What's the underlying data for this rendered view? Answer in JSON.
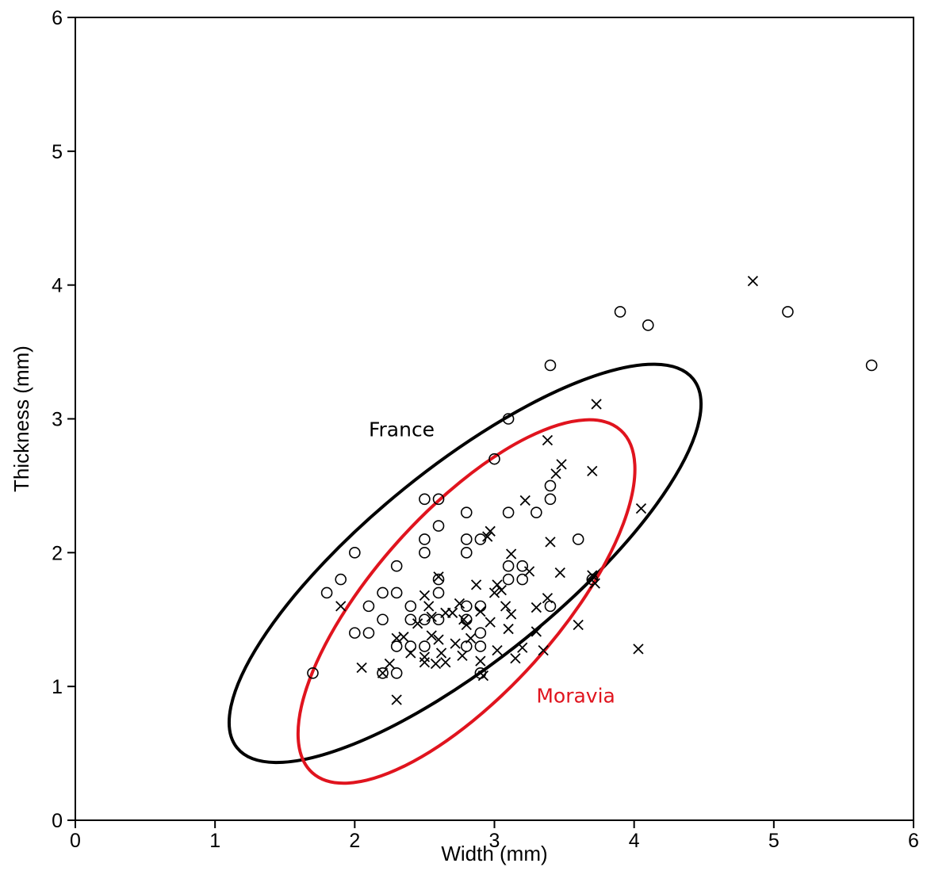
{
  "chart_data": {
    "type": "scatter",
    "xlabel": "Width (mm)",
    "ylabel": "Thickness (mm)",
    "xlim": [
      0,
      6
    ],
    "ylim": [
      0,
      6
    ],
    "x_ticks": [
      "0",
      "1",
      "2",
      "3",
      "4",
      "5",
      "6"
    ],
    "y_ticks": [
      "0",
      "1",
      "2",
      "3",
      "4",
      "5",
      "6"
    ],
    "grid": false,
    "colors": {
      "france": "#000000",
      "moravia": "#e0141e"
    },
    "series": [
      {
        "marker": "circle",
        "points": [
          [
            1.7,
            1.1
          ],
          [
            1.8,
            1.7
          ],
          [
            1.9,
            1.8
          ],
          [
            2.0,
            2.0
          ],
          [
            2.0,
            1.4
          ],
          [
            2.1,
            1.6
          ],
          [
            2.1,
            1.4
          ],
          [
            2.2,
            1.7
          ],
          [
            2.2,
            1.5
          ],
          [
            2.2,
            1.1
          ],
          [
            2.3,
            1.9
          ],
          [
            2.3,
            1.7
          ],
          [
            2.3,
            1.3
          ],
          [
            2.3,
            1.1
          ],
          [
            2.4,
            1.6
          ],
          [
            2.4,
            1.5
          ],
          [
            2.4,
            1.3
          ],
          [
            2.5,
            2.4
          ],
          [
            2.5,
            2.1
          ],
          [
            2.5,
            2.0
          ],
          [
            2.5,
            1.5
          ],
          [
            2.5,
            1.3
          ],
          [
            2.6,
            2.4
          ],
          [
            2.6,
            2.2
          ],
          [
            2.6,
            1.8
          ],
          [
            2.6,
            1.7
          ],
          [
            2.6,
            1.5
          ],
          [
            2.8,
            2.3
          ],
          [
            2.8,
            2.1
          ],
          [
            2.8,
            2.0
          ],
          [
            2.8,
            1.6
          ],
          [
            2.8,
            1.5
          ],
          [
            2.8,
            1.3
          ],
          [
            2.9,
            2.1
          ],
          [
            2.9,
            1.6
          ],
          [
            2.9,
            1.4
          ],
          [
            2.9,
            1.3
          ],
          [
            2.9,
            1.1
          ],
          [
            3.0,
            2.7
          ],
          [
            3.1,
            3.0
          ],
          [
            3.1,
            2.3
          ],
          [
            3.1,
            1.9
          ],
          [
            3.1,
            1.8
          ],
          [
            3.2,
            1.9
          ],
          [
            3.2,
            1.8
          ],
          [
            3.3,
            2.3
          ],
          [
            3.4,
            3.4
          ],
          [
            3.4,
            2.5
          ],
          [
            3.4,
            2.4
          ],
          [
            3.4,
            1.6
          ],
          [
            3.6,
            2.1
          ],
          [
            3.7,
            1.8
          ],
          [
            3.9,
            3.8
          ],
          [
            4.1,
            3.7
          ],
          [
            5.1,
            3.8
          ],
          [
            5.7,
            3.4
          ]
        ]
      },
      {
        "marker": "cross",
        "points": [
          [
            1.9,
            1.6
          ],
          [
            2.05,
            1.14
          ],
          [
            2.2,
            1.1
          ],
          [
            2.25,
            1.17
          ],
          [
            2.3,
            0.9
          ],
          [
            2.3,
            1.36
          ],
          [
            2.35,
            1.37
          ],
          [
            2.4,
            1.25
          ],
          [
            2.45,
            1.47
          ],
          [
            2.5,
            1.68
          ],
          [
            2.5,
            1.22
          ],
          [
            2.5,
            1.18
          ],
          [
            2.53,
            1.6
          ],
          [
            2.55,
            1.52
          ],
          [
            2.55,
            1.38
          ],
          [
            2.58,
            1.17
          ],
          [
            2.6,
            1.82
          ],
          [
            2.6,
            1.35
          ],
          [
            2.62,
            1.25
          ],
          [
            2.65,
            1.55
          ],
          [
            2.65,
            1.18
          ],
          [
            2.7,
            1.55
          ],
          [
            2.72,
            1.32
          ],
          [
            2.75,
            1.62
          ],
          [
            2.77,
            1.23
          ],
          [
            2.78,
            1.5
          ],
          [
            2.8,
            1.46
          ],
          [
            2.83,
            1.36
          ],
          [
            2.87,
            1.76
          ],
          [
            2.9,
            1.56
          ],
          [
            2.9,
            1.19
          ],
          [
            2.92,
            1.08
          ],
          [
            2.95,
            2.12
          ],
          [
            2.97,
            2.16
          ],
          [
            2.97,
            1.48
          ],
          [
            3.0,
            1.7
          ],
          [
            3.02,
            1.76
          ],
          [
            3.02,
            1.27
          ],
          [
            3.05,
            1.72
          ],
          [
            3.08,
            1.6
          ],
          [
            3.1,
            1.43
          ],
          [
            3.12,
            1.99
          ],
          [
            3.12,
            1.54
          ],
          [
            3.15,
            1.21
          ],
          [
            3.2,
            1.29
          ],
          [
            3.22,
            2.39
          ],
          [
            3.25,
            1.86
          ],
          [
            3.3,
            1.59
          ],
          [
            3.3,
            1.41
          ],
          [
            3.35,
            1.27
          ],
          [
            3.38,
            2.84
          ],
          [
            3.38,
            1.66
          ],
          [
            3.4,
            2.08
          ],
          [
            3.44,
            2.59
          ],
          [
            3.47,
            1.85
          ],
          [
            3.48,
            2.66
          ],
          [
            3.6,
            1.46
          ],
          [
            3.7,
            2.61
          ],
          [
            3.7,
            1.83
          ],
          [
            3.72,
            1.77
          ],
          [
            3.73,
            3.11
          ],
          [
            4.03,
            1.28
          ],
          [
            4.05,
            2.33
          ],
          [
            4.85,
            4.03
          ]
        ]
      }
    ],
    "ellipses": [
      {
        "label": "France",
        "color": "#000000",
        "center": [
          2.79,
          1.92
        ],
        "semi_axes": [
          2.1,
          0.72
        ],
        "angle_deg": 39
      },
      {
        "label": "Moravia",
        "color": "#e0141e",
        "center": [
          2.8,
          1.635
        ],
        "semi_axes": [
          1.65,
          0.68
        ],
        "angle_deg": 48
      }
    ],
    "annotations": [
      {
        "text": "France",
        "x": 2.1,
        "y": 2.87,
        "color": "#000000"
      },
      {
        "text": "Moravia",
        "x": 3.3,
        "y": 0.88,
        "color": "#e0141e"
      }
    ]
  }
}
